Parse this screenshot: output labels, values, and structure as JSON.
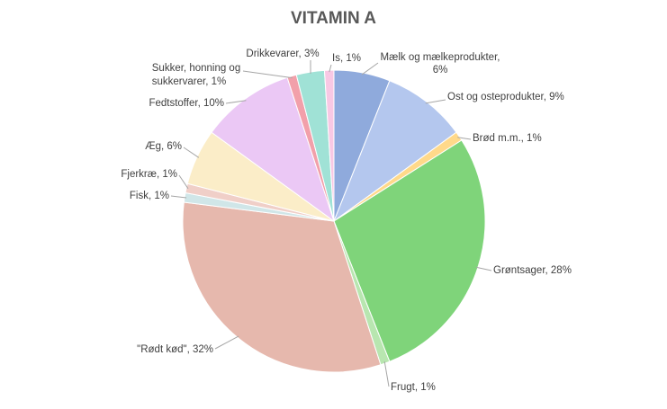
{
  "chart_data": {
    "type": "pie",
    "title": "VITAMIN A",
    "start_angle_deg": 0,
    "direction": "clockwise",
    "slices": [
      {
        "label": "Mælk og mælkeprodukter, 6%",
        "value": 6,
        "color": "#8faadc"
      },
      {
        "label": "Ost og osteprodukter, 9%",
        "value": 9,
        "color": "#b4c7ee"
      },
      {
        "label": "Brød m.m., 1%",
        "value": 1,
        "color": "#ffd98a"
      },
      {
        "label": "Grøntsager, 28%",
        "value": 28,
        "color": "#7fd47a"
      },
      {
        "label": "Frugt, 1%",
        "value": 1,
        "color": "#b8e6b0"
      },
      {
        "label": "\"Rødt kød\", 32%",
        "value": 32,
        "color": "#e6b8ad"
      },
      {
        "label": "Fisk, 1%",
        "value": 1,
        "color": "#d0e6e8"
      },
      {
        "label": "Fjerkræ, 1%",
        "value": 1,
        "color": "#f0cfc8"
      },
      {
        "label": "Æg, 6%",
        "value": 6,
        "color": "#fbedc8"
      },
      {
        "label": "Fedtstoffer, 10%",
        "value": 10,
        "color": "#ebc8f5"
      },
      {
        "label": "Sukker, honning og sukkervarer, 1%",
        "value": 1,
        "color": "#f2a0aa"
      },
      {
        "label": "Drikkevarer, 3%",
        "value": 3,
        "color": "#a0e2d6"
      },
      {
        "label": "Is, 1%",
        "value": 1,
        "color": "#f8c8e4"
      }
    ],
    "legend": "none"
  }
}
